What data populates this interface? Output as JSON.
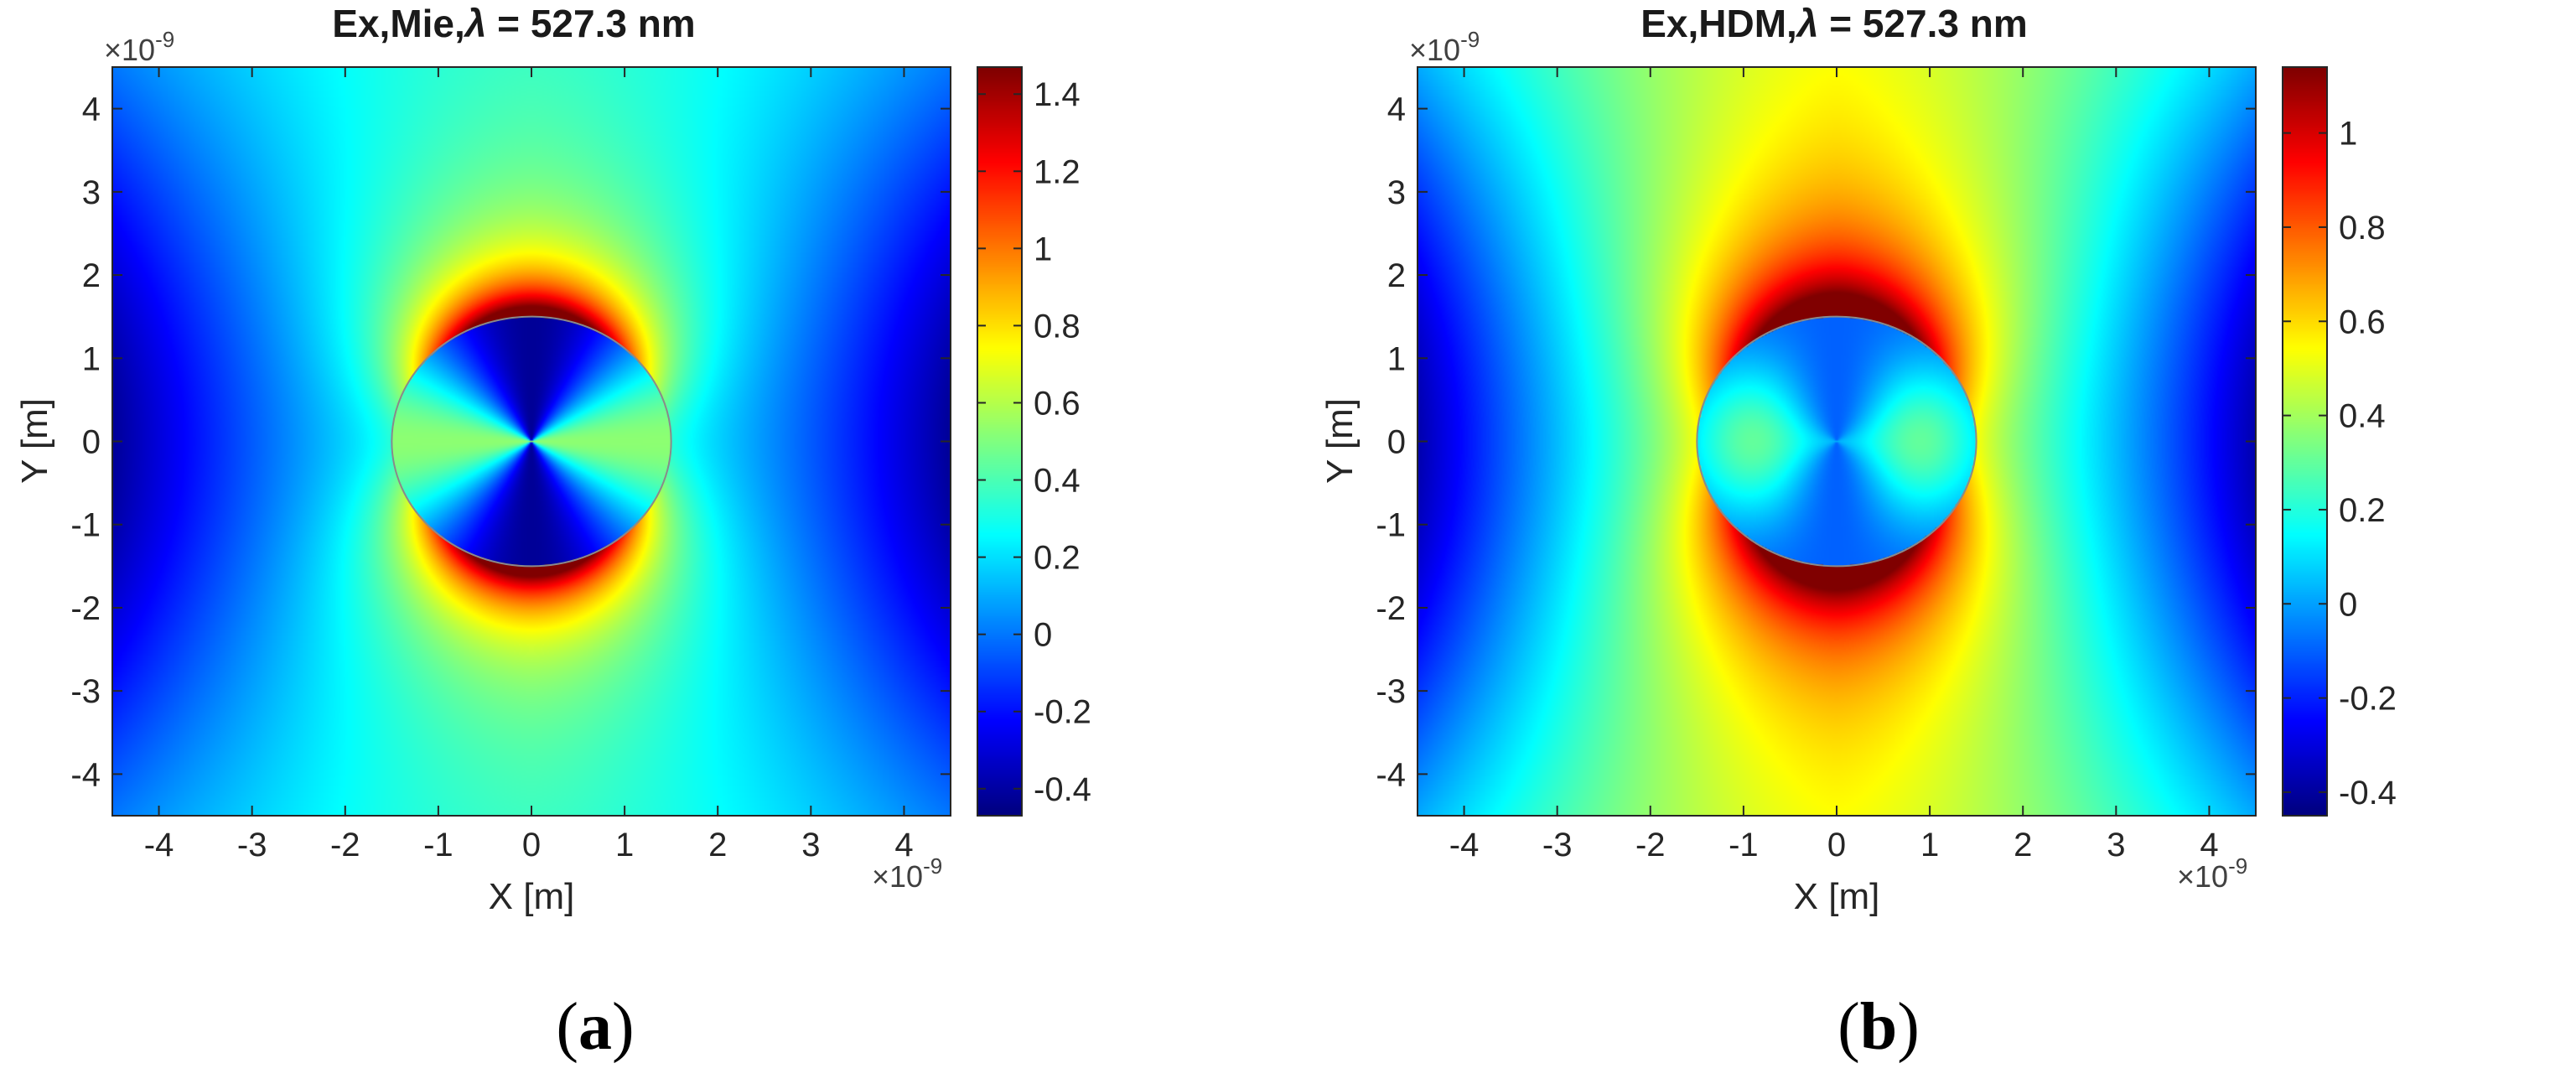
{
  "chart_data": [
    {
      "type": "heatmap",
      "panel_label": "a",
      "title_prefix": "Ex,Mie,",
      "title_symbol": "λ",
      "title_suffix": " = 527.3 nm",
      "xlabel": "X [m]",
      "ylabel": "Y [m]",
      "axis_multiplier": "×10",
      "axis_exponent": "-9",
      "xlim": [
        -4.5,
        4.5
      ],
      "ylim": [
        -4.5,
        4.5
      ],
      "xticks": [
        -4,
        -3,
        -2,
        -1,
        0,
        1,
        2,
        3,
        4
      ],
      "yticks": [
        4,
        3,
        2,
        1,
        0,
        -1,
        -2,
        -3,
        -4
      ],
      "sphere_radius": 1.5,
      "colorbar": {
        "colormap": "jet",
        "clim": [
          -0.47,
          1.47
        ],
        "ticks": [
          1.4,
          1.2,
          1,
          0.8,
          0.6,
          0.4,
          0.2,
          0,
          -0.2,
          -0.4
        ]
      }
    },
    {
      "type": "heatmap",
      "panel_label": "b",
      "title_prefix": "Ex,HDM,",
      "title_symbol": "λ",
      "title_suffix": " = 527.3 nm",
      "xlabel": "X [m]",
      "ylabel": "Y [m]",
      "axis_multiplier": "×10",
      "axis_exponent": "-9",
      "xlim": [
        -4.5,
        4.5
      ],
      "ylim": [
        -4.5,
        4.5
      ],
      "xticks": [
        -4,
        -3,
        -2,
        -1,
        0,
        1,
        2,
        3,
        4
      ],
      "yticks": [
        4,
        3,
        2,
        1,
        0,
        -1,
        -2,
        -3,
        -4
      ],
      "sphere_radius": 1.5,
      "colorbar": {
        "colormap": "jet",
        "clim": [
          -0.45,
          1.14
        ],
        "ticks": [
          1,
          0.8,
          0.6,
          0.4,
          0.2,
          0,
          -0.2,
          -0.4
        ]
      }
    }
  ]
}
